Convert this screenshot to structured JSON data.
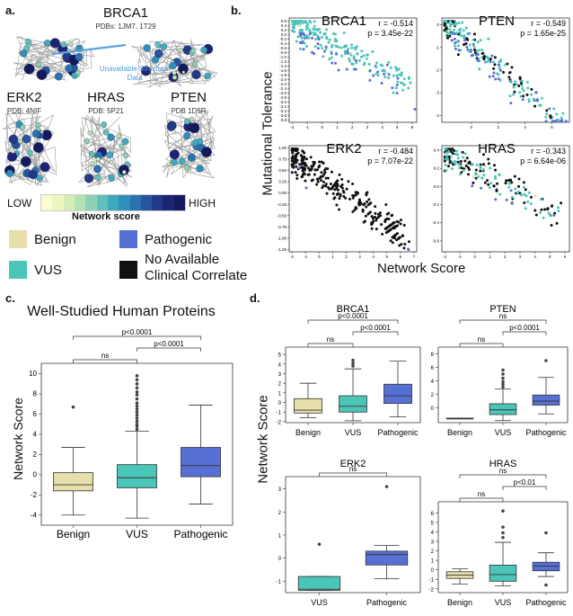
{
  "colors": {
    "benign": "#e6deab",
    "vus": "#4cc5b9",
    "pathogenic": "#5670d3",
    "none": "#111111"
  },
  "panel_a": {
    "label": "a.",
    "brca1_title": "BRCA1",
    "brca1_pdb": "PDBs: 1JM7, 1T29",
    "unavailable": "Unavailable Structural Data",
    "erk2_title": "ERK2",
    "erk2_pdb": "PDB: 4NIF",
    "hras_title": "HRAS",
    "hras_pdb": "PDB: 5P21",
    "pten_title": "PTEN",
    "pten_pdb": "PDB 1D5R",
    "colorbar_low": "LOW",
    "colorbar_high": "HIGH",
    "colorbar_title": "Network score",
    "colorbar_colors": [
      "#fbfbd0",
      "#eef6c0",
      "#d6eeb5",
      "#b5e2b4",
      "#8dd2b8",
      "#62bfbd",
      "#3fa9c0",
      "#2f8fbc",
      "#2a72b0",
      "#26559f",
      "#22398a",
      "#1c2574",
      "#141a5e"
    ],
    "legend": [
      {
        "key": "benign",
        "label": "Benign"
      },
      {
        "key": "pathogenic",
        "label": "Pathogenic"
      },
      {
        "key": "vus",
        "label": "VUS"
      },
      {
        "key": "none",
        "label": "No Available\nClinical Correlate"
      }
    ]
  },
  "panel_b": {
    "label": "b.",
    "ylabel": "Mutational Tolerance",
    "xlabel": "Network Score"
  },
  "panel_c": {
    "label": "c.",
    "title": "Well-Studied Human Proteins",
    "ylabel": "Network Score"
  },
  "panel_d": {
    "label": "d.",
    "ylabel": "Network Score"
  },
  "chart_data": [
    {
      "id": "b_brca1",
      "type": "scatter",
      "title": "BRCA1",
      "r": "r = -0.514",
      "p": "p = 3.45e-22",
      "xlim": [
        -2.2,
        6.3
      ],
      "ylim": [
        -3.9,
        0.75
      ],
      "xticks": [
        -2,
        -1,
        0,
        1,
        2,
        3,
        4,
        5,
        6
      ],
      "yticks": [
        0.6,
        0.4,
        0.2,
        0.0,
        -0.2,
        -0.4,
        -0.6,
        -0.8,
        -1.0,
        -1.2,
        -1.4,
        -1.6,
        -1.8,
        -2.0,
        -2.2,
        -2.4,
        -2.6,
        -2.8,
        -3.0,
        -3.2,
        -3.4,
        -3.6,
        -3.8
      ],
      "ytick_labels": [
        "0.6",
        "0.4",
        "0.2",
        "0.0",
        "-0.2",
        "-0.4",
        "-0.6",
        "-0.8",
        "-1.0",
        "-1.2",
        "-1.4",
        "-1.6",
        "-1.8",
        "-2.0",
        "-2.2",
        "-2.4",
        "-2.6",
        "-2.8",
        "-3.0",
        "-3.2",
        "-3.4",
        "-3.6",
        "-3.8"
      ],
      "mix": {
        "vus": 0.75,
        "pathogenic": 0.2,
        "benign": 0.05
      },
      "n": 240,
      "slope": -0.35,
      "seed": 11
    },
    {
      "id": "b_pten",
      "type": "scatter",
      "title": "PTEN",
      "r": "r = -0.549",
      "p": "p = 1.65e-25",
      "xlim": [
        -2.2,
        7.3
      ],
      "ylim": [
        -4.3,
        0.3
      ],
      "xticks": [
        0,
        2,
        4,
        6
      ],
      "yticks": [
        0,
        -1,
        -2,
        -3,
        -4
      ],
      "ytick_labels": [
        "0",
        "-1",
        "-2",
        "-3",
        "-4"
      ],
      "mix": {
        "vus": 0.5,
        "pathogenic": 0.25,
        "none": 0.25
      },
      "n": 230,
      "slope": -0.5,
      "seed": 23
    },
    {
      "id": "b_erk2",
      "type": "scatter",
      "title": "ERK2",
      "r": "r = -0.484",
      "p": "p = 7.07e-22",
      "xlim": [
        -2.2,
        7.2
      ],
      "ylim": [
        -1.3,
        1.05
      ],
      "xticks": [
        -2,
        -1,
        0,
        1,
        2,
        3,
        4,
        5,
        6,
        7
      ],
      "yticks": [
        1.0,
        0.75,
        0.5,
        0.25,
        0.0,
        -0.25,
        -0.5,
        -0.75,
        -1.0,
        -1.25
      ],
      "ytick_labels": [
        "1.00",
        "0.75",
        "0.50",
        "0.25",
        "0.00",
        "-0.25",
        "-0.50",
        "-0.75",
        "-1.00",
        "-1.25"
      ],
      "mix": {
        "none": 0.98,
        "pathogenic": 0.02
      },
      "n": 300,
      "slope": -0.22,
      "seed": 37
    },
    {
      "id": "b_hras",
      "type": "scatter",
      "title": "HRAS",
      "r": "r = -0.343",
      "p": "p = 6.64e-06",
      "xlim": [
        -2.2,
        6.3
      ],
      "ylim": [
        -0.72,
        0.45
      ],
      "xticks": [
        -2,
        -1,
        0,
        1,
        2,
        3,
        4,
        5,
        6
      ],
      "yticks": [
        0.4,
        0.2,
        0.0,
        -0.2,
        -0.4,
        -0.6
      ],
      "ytick_labels": [
        "0.4",
        "0.2",
        "0.0",
        "-0.2",
        "-0.4",
        "-0.6"
      ],
      "mix": {
        "none": 0.5,
        "vus": 0.42,
        "pathogenic": 0.05,
        "benign": 0.03
      },
      "n": 170,
      "slope": -0.09,
      "seed": 53
    },
    {
      "id": "c_box",
      "type": "box",
      "ylim": [
        -5,
        10.5
      ],
      "yticks": [
        -4,
        -2,
        0,
        2,
        4,
        6,
        8,
        10
      ],
      "categories": [
        "Benign",
        "VUS",
        "Pathogenic"
      ],
      "boxes": [
        {
          "cat": "Benign",
          "color": "benign",
          "q1": -1.6,
          "med": -1.0,
          "q3": 0.2,
          "wlo": -4.0,
          "whi": 2.7,
          "out": [
            6.7
          ]
        },
        {
          "cat": "VUS",
          "color": "vus",
          "q1": -1.3,
          "med": -0.3,
          "q3": 1.0,
          "wlo": -4.3,
          "whi": 4.3,
          "out": [
            4.5,
            4.8,
            5.0,
            5.3,
            5.6,
            5.9,
            6.2,
            6.5,
            6.8,
            7.1,
            7.5,
            7.9,
            8.2,
            8.6,
            9.0,
            9.4,
            9.8
          ]
        },
        {
          "cat": "Pathogenic",
          "color": "pathogenic",
          "q1": -0.2,
          "med": 0.9,
          "q3": 2.7,
          "wlo": -2.9,
          "whi": 6.9,
          "out": []
        }
      ],
      "sig": [
        {
          "from": 0,
          "to": 2,
          "text": "p<0.0001",
          "level": 2
        },
        {
          "from": 1,
          "to": 2,
          "text": "p<0.0001",
          "level": 1
        },
        {
          "from": 0,
          "to": 1,
          "text": "ns",
          "level": 0
        }
      ]
    },
    {
      "id": "d_brca1",
      "type": "box",
      "title": "BRCA1",
      "ylim": [
        -2.1,
        5.2
      ],
      "yticks": [
        -2,
        -1,
        0,
        1,
        2,
        3,
        4,
        5
      ],
      "categories": [
        "Benign",
        "VUS",
        "Pathogenic"
      ],
      "boxes": [
        {
          "cat": "Benign",
          "color": "benign",
          "q1": -1.1,
          "med": -0.8,
          "q3": 0.4,
          "wlo": -1.6,
          "whi": 2.0,
          "out": []
        },
        {
          "cat": "VUS",
          "color": "vus",
          "q1": -1.0,
          "med": -0.4,
          "q3": 0.7,
          "wlo": -1.9,
          "whi": 3.5,
          "out": [
            3.8,
            4.1,
            4.4
          ]
        },
        {
          "cat": "Pathogenic",
          "color": "pathogenic",
          "q1": -0.1,
          "med": 0.7,
          "q3": 1.9,
          "wlo": -1.5,
          "whi": 4.3,
          "out": []
        }
      ],
      "sig": [
        {
          "from": 0,
          "to": 2,
          "text": "p<0.0001",
          "level": 2
        },
        {
          "from": 1,
          "to": 2,
          "text": "p<0.0001",
          "level": 1
        },
        {
          "from": 0,
          "to": 1,
          "text": "ns",
          "level": 0
        }
      ]
    },
    {
      "id": "d_pten",
      "type": "box",
      "title": "PTEN",
      "ylim": [
        -2.2,
        8.2
      ],
      "yticks": [
        0,
        2,
        4,
        6,
        8
      ],
      "categories": [
        "Benign",
        "VUS",
        "Pathogenic"
      ],
      "boxes": [
        {
          "cat": "Benign",
          "color": "benign",
          "q1": -1.55,
          "med": -1.55,
          "q3": -1.55,
          "wlo": -1.55,
          "whi": -1.55,
          "out": []
        },
        {
          "cat": "VUS",
          "color": "vus",
          "q1": -1.0,
          "med": -0.3,
          "q3": 0.6,
          "wlo": -1.9,
          "whi": 2.8,
          "out": [
            3.1,
            3.5,
            3.9,
            4.4,
            5.0,
            5.6
          ]
        },
        {
          "cat": "Pathogenic",
          "color": "pathogenic",
          "q1": 0.4,
          "med": 1.0,
          "q3": 1.9,
          "wlo": -0.9,
          "whi": 4.5,
          "out": [
            7.0
          ]
        }
      ],
      "sig": [
        {
          "from": 0,
          "to": 2,
          "text": "ns",
          "level": 2
        },
        {
          "from": 1,
          "to": 2,
          "text": "p<0.0001",
          "level": 1
        },
        {
          "from": 0,
          "to": 1,
          "text": "ns",
          "level": 0
        }
      ]
    },
    {
      "id": "d_erk2",
      "type": "box",
      "title": "ERK2",
      "ylim": [
        -1.5,
        3.3
      ],
      "yticks": [
        -1,
        0,
        1,
        2,
        3
      ],
      "categories": [
        "VUS",
        "Pathogenic"
      ],
      "boxes": [
        {
          "cat": "VUS",
          "color": "vus",
          "q1": -1.4,
          "med": -1.35,
          "q3": -0.8,
          "wlo": -1.4,
          "whi": -0.8,
          "out": [
            0.6
          ]
        },
        {
          "cat": "Pathogenic",
          "color": "pathogenic",
          "q1": -0.3,
          "med": 0.15,
          "q3": 0.3,
          "wlo": -0.9,
          "whi": 0.55,
          "out": [
            3.1
          ]
        }
      ],
      "sig": [
        {
          "from": 0,
          "to": 1,
          "text": "ns",
          "level": 0
        }
      ]
    },
    {
      "id": "d_hras",
      "type": "box",
      "title": "HRAS",
      "ylim": [
        -2.4,
        6.6
      ],
      "yticks": [
        -2,
        -1,
        0,
        1,
        2,
        3,
        4,
        5,
        6
      ],
      "categories": [
        "Benign",
        "VUS",
        "Pathogenic"
      ],
      "boxes": [
        {
          "cat": "Benign",
          "color": "benign",
          "q1": -0.9,
          "med": -0.55,
          "q3": -0.2,
          "wlo": -1.5,
          "whi": 0.1,
          "out": []
        },
        {
          "cat": "VUS",
          "color": "vus",
          "q1": -1.2,
          "med": -0.5,
          "q3": 0.5,
          "wlo": -1.7,
          "whi": 2.9,
          "out": [
            3.4,
            3.9,
            4.5,
            6.2
          ]
        },
        {
          "cat": "Pathogenic",
          "color": "pathogenic",
          "q1": -0.1,
          "med": 0.4,
          "q3": 0.8,
          "wlo": -0.7,
          "whi": 1.8,
          "out": [
            -1.6,
            3.9
          ]
        }
      ],
      "sig": [
        {
          "from": 0,
          "to": 2,
          "text": "ns",
          "level": 2
        },
        {
          "from": 1,
          "to": 2,
          "text": "p<0.01",
          "level": 1
        },
        {
          "from": 0,
          "to": 1,
          "text": "ns",
          "level": 0
        }
      ]
    }
  ]
}
